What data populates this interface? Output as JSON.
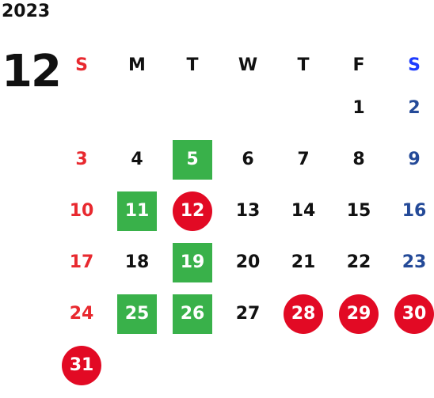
{
  "year": "2023",
  "month": "12",
  "weekdays": [
    "S",
    "M",
    "T",
    "W",
    "T",
    "F",
    "S"
  ],
  "weeks": [
    [
      "",
      "",
      "",
      "",
      "",
      "1",
      "2"
    ],
    [
      "3",
      "4",
      "5",
      "6",
      "7",
      "8",
      "9"
    ],
    [
      "10",
      "11",
      "12",
      "13",
      "14",
      "15",
      "16"
    ],
    [
      "17",
      "18",
      "19",
      "20",
      "21",
      "22",
      "23"
    ],
    [
      "24",
      "25",
      "26",
      "27",
      "28",
      "29",
      "30"
    ],
    [
      "31",
      "",
      "",
      "",
      "",
      "",
      ""
    ]
  ],
  "green_days": [
    "5",
    "11",
    "19",
    "25",
    "26"
  ],
  "red_days": [
    "12",
    "28",
    "29",
    "30",
    "31"
  ],
  "colors": {
    "sunday": "#e8292f",
    "saturday_header": "#1e3cff",
    "saturday": "#244a98",
    "green_mark": "#39b14a",
    "red_mark": "#e20a24"
  }
}
